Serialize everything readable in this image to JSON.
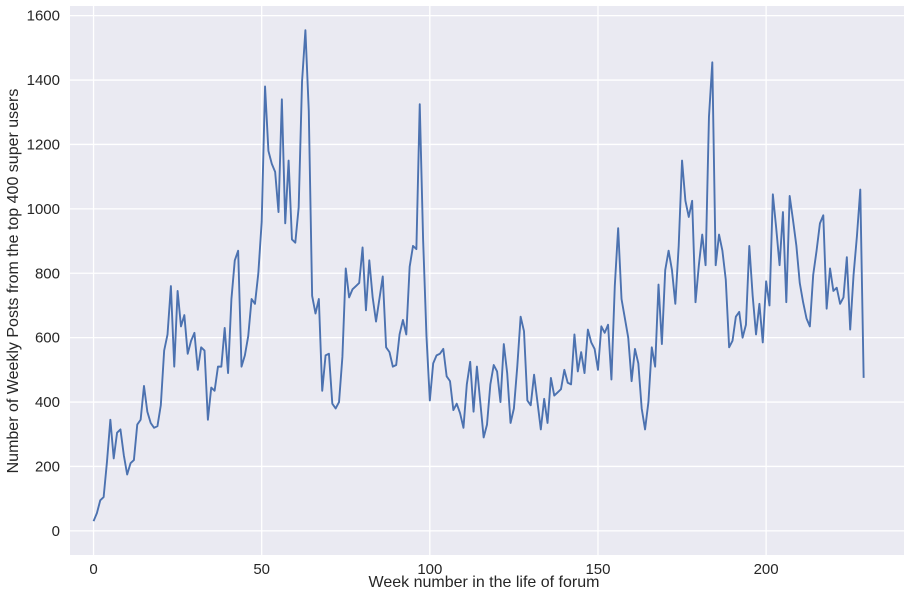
{
  "chart_data": {
    "type": "line",
    "xlabel": "Week number in the life of forum",
    "ylabel": "Number of Weekly Posts from the top 400 super users",
    "xlim": [
      -7,
      241
    ],
    "ylim": [
      -75,
      1630
    ],
    "xticks": [
      0,
      50,
      100,
      150,
      200
    ],
    "yticks": [
      0,
      200,
      400,
      600,
      800,
      1000,
      1200,
      1400,
      1600
    ],
    "grid": true,
    "background": "#eaeaf2",
    "line_color": "#4c72b0",
    "series": [
      {
        "name": "",
        "values": [
          30,
          55,
          95,
          105,
          215,
          345,
          225,
          305,
          315,
          235,
          175,
          210,
          220,
          330,
          345,
          450,
          370,
          335,
          320,
          325,
          390,
          560,
          610,
          760,
          510,
          745,
          635,
          670,
          550,
          590,
          615,
          500,
          570,
          560,
          345,
          445,
          435,
          510,
          510,
          630,
          490,
          720,
          840,
          870,
          510,
          545,
          605,
          720,
          705,
          800,
          960,
          1380,
          1180,
          1140,
          1115,
          990,
          1340,
          955,
          1150,
          905,
          895,
          1005,
          1395,
          1555,
          1305,
          730,
          675,
          720,
          435,
          545,
          550,
          395,
          380,
          400,
          540,
          815,
          725,
          750,
          760,
          770,
          880,
          685,
          840,
          725,
          650,
          720,
          790,
          570,
          555,
          510,
          515,
          610,
          655,
          610,
          820,
          885,
          875,
          1325,
          905,
          605,
          405,
          520,
          545,
          550,
          565,
          480,
          465,
          375,
          395,
          365,
          320,
          455,
          525,
          370,
          510,
          400,
          290,
          330,
          455,
          515,
          495,
          400,
          580,
          490,
          335,
          380,
          510,
          665,
          620,
          405,
          390,
          485,
          400,
          315,
          410,
          335,
          475,
          420,
          430,
          440,
          500,
          460,
          455,
          610,
          495,
          555,
          490,
          625,
          585,
          565,
          500,
          635,
          615,
          640,
          470,
          760,
          940,
          720,
          660,
          600,
          465,
          565,
          520,
          380,
          315,
          400,
          570,
          510,
          765,
          580,
          810,
          870,
          810,
          705,
          885,
          1150,
          1025,
          975,
          1025,
          710,
          825,
          920,
          825,
          1285,
          1455,
          825,
          920,
          870,
          780,
          570,
          590,
          665,
          680,
          600,
          640,
          885,
          730,
          610,
          705,
          585,
          775,
          700,
          1045,
          940,
          825,
          990,
          710,
          1040,
          965,
          885,
          770,
          710,
          660,
          635,
          795,
          870,
          955,
          980,
          690,
          815,
          745,
          755,
          705,
          725,
          850,
          625,
          795,
          915,
          1060,
          475
        ]
      }
    ]
  }
}
